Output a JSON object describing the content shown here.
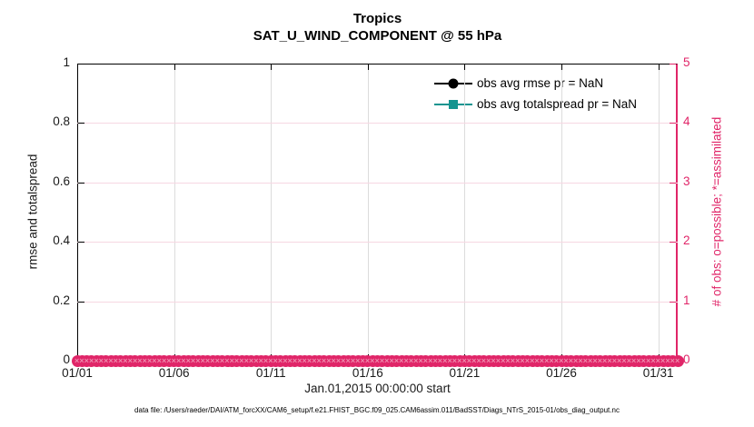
{
  "title": {
    "line1": "Tropics",
    "line2": "SAT_U_WIND_COMPONENT @ 55 hPa"
  },
  "chart_data": {
    "type": "line",
    "title": "Tropics",
    "subtitle": "SAT_U_WIND_COMPONENT @ 55 hPa",
    "xlabel": "Jan.01,2015 00:00:00 start",
    "ylabel_left": "rmse and totalspread",
    "ylabel_right": "# of obs: o=possible; *=assimilated",
    "x_tick_labels": [
      "01/01",
      "01/06",
      "01/11",
      "01/16",
      "01/21",
      "01/26",
      "01/31"
    ],
    "x_tick_days": [
      0,
      5,
      10,
      15,
      20,
      25,
      30
    ],
    "x_range_days": [
      0,
      31
    ],
    "y_left_tick_labels": [
      "0",
      "0.2",
      "0.4",
      "0.6",
      "0.8",
      "1"
    ],
    "y_left_values": [
      0,
      0.2,
      0.4,
      0.6,
      0.8,
      1
    ],
    "y_left_range": [
      0,
      1
    ],
    "y_right_tick_labels": [
      "0",
      "1",
      "2",
      "3",
      "4",
      "5"
    ],
    "y_right_values": [
      0,
      1,
      2,
      3,
      4,
      5
    ],
    "y_right_range": [
      0,
      5
    ],
    "grid": true,
    "legend_position": "top-right-inside",
    "series": [
      {
        "name": "obs avg rmse pr = NaN",
        "axis": "left",
        "marker": "circle",
        "color": "#000000",
        "values": "NaN"
      },
      {
        "name": "obs avg totalspread pr = NaN",
        "axis": "left",
        "marker": "square",
        "color": "#149490",
        "values": "NaN"
      },
      {
        "name": "# of obs possible (o)",
        "axis": "right",
        "marker": "o",
        "color": "#e02568",
        "constant_value": 0,
        "n_points": 125
      },
      {
        "name": "# of obs assimilated (x)",
        "axis": "right",
        "marker": "x",
        "color": "#e02568",
        "constant_value": 0,
        "n_points": 125
      }
    ]
  },
  "legend": {
    "items": [
      {
        "label": "obs avg rmse pr = NaN"
      },
      {
        "label": "obs avg totalspread pr = NaN"
      }
    ]
  },
  "caption": "data file: /Users/raeder/DAI/ATM_forcXX/CAM6_setup/f.e21.FHIST_BGC.f09_025.CAM6assim.011/BadSST/Diags_NTrS_2015-01/obs_diag_output.nc",
  "colors": {
    "obs_axis": "#e02568",
    "rmse": "#000000",
    "totalspread": "#149490",
    "grid_vertical": "#dcdcdc",
    "grid_horizontal": "#f6d7e2"
  }
}
